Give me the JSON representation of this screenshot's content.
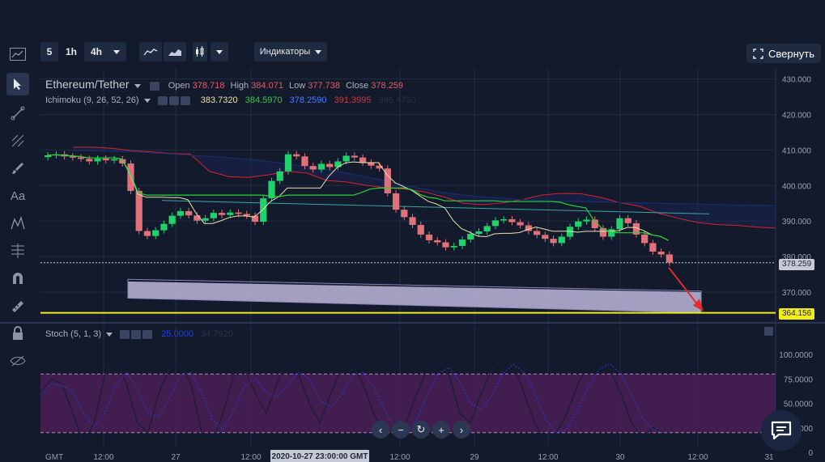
{
  "toolbar": {
    "interval_5": "5",
    "interval_1h": "1h",
    "interval_4h": "4h",
    "indicators_label": "Индикаторы",
    "collapse_label": "Свернуть"
  },
  "symbol": {
    "name": "Ethereum/Tether",
    "open_label": "Open",
    "open": "378.718",
    "high_label": "High",
    "high": "384.071",
    "low_label": "Low",
    "low": "377.738",
    "close_label": "Close",
    "close": "378.259"
  },
  "ichimoku": {
    "name": "Ichimoku (9, 26, 52, 26)",
    "v1": "383.7320",
    "v2": "384.5970",
    "v3": "378.2590",
    "v4": "391.3995",
    "v5": "396.4730"
  },
  "stoch": {
    "name": "Stoch (5, 1, 3)",
    "v1": "25.0000",
    "v2": "34.7920"
  },
  "price_tags": {
    "last": "378.259",
    "target": "364.156"
  },
  "price_axis": [
    "430.000",
    "420.000",
    "410.000",
    "400.000",
    "390.000",
    "380.000",
    "370.000"
  ],
  "stoch_axis": [
    "100.0000",
    "75.0000",
    "50.0000",
    "25.0000",
    "0"
  ],
  "time_axis": {
    "gmt": "GMT",
    "labels": [
      "12:00",
      "27",
      "12:00",
      "12:00",
      "29",
      "12:00",
      "30",
      "12:00",
      "31"
    ],
    "crosshair": "2020-10-27 23:00:00 GMT"
  },
  "colors": {
    "background": "#131a2b",
    "bull": "#1fd26b",
    "bear": "#e0707a",
    "tenkan": "#e8e2b0",
    "kijun": "#25d43a",
    "cloud_upper": "#d8232f",
    "cloud_lower": "#1b2a6a",
    "target_line": "#f2ec19",
    "stoch_zone": "#4b1f56"
  }
}
